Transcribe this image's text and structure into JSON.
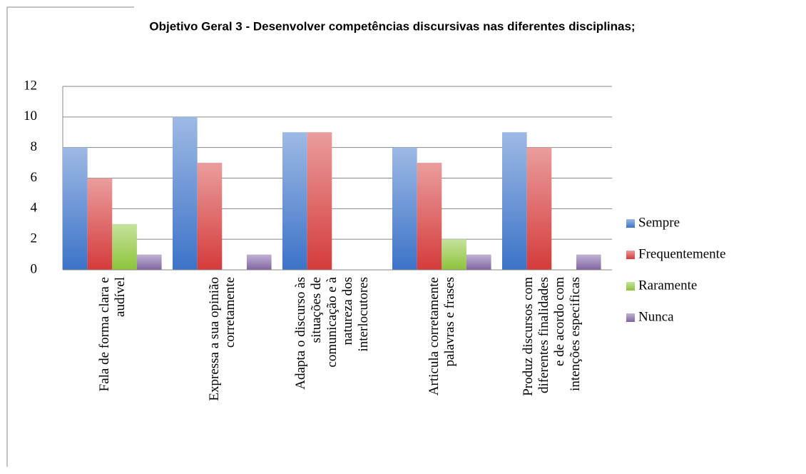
{
  "chart_data": {
    "type": "bar",
    "title": "Objetivo Geral 3 -  Desenvolver competências discursivas nas diferentes disciplinas;",
    "categories": [
      "Fala de forma clara e audível",
      "Expressa a sua opinião corretamente",
      "Adapta o discurso às situações de comunicação e à natureza dos interlocutores",
      "Articula corretamente palavras e frases",
      "Produz discursos com diferentes finalidades e de acordo com intenções especificas"
    ],
    "series": [
      {
        "name": "Sempre",
        "color": "#3c73c8",
        "values": [
          8,
          10,
          9,
          8,
          9
        ]
      },
      {
        "name": "Frequentemente",
        "color": "#d53b3b",
        "values": [
          6,
          7,
          9,
          7,
          8
        ]
      },
      {
        "name": "Raramente",
        "color": "#8cc43a",
        "values": [
          3,
          0,
          0,
          2,
          0
        ]
      },
      {
        "name": "Nunca",
        "color": "#8064a2",
        "values": [
          1,
          1,
          0,
          1,
          1
        ]
      }
    ],
    "ylim": [
      0,
      12
    ],
    "yticks": [
      0,
      2,
      4,
      6,
      8,
      10,
      12
    ],
    "grid": true,
    "legend": "right"
  }
}
